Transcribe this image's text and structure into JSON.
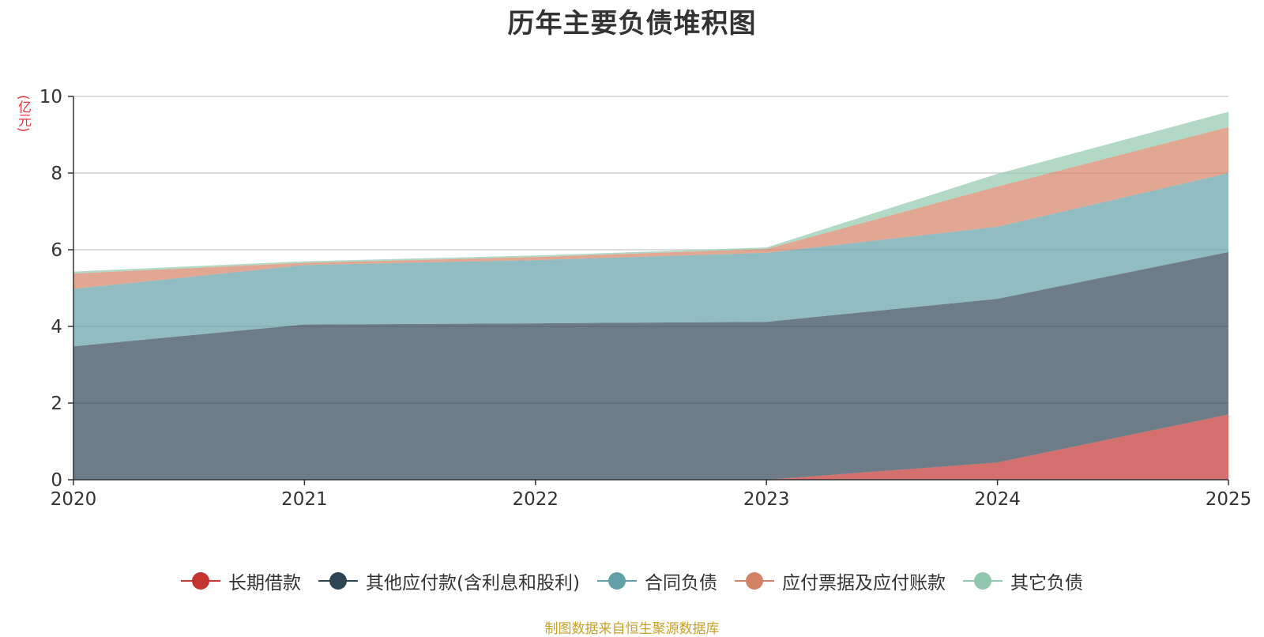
{
  "chart_data": {
    "type": "area",
    "stacked": true,
    "title": "历年主要负债堆积图",
    "ylabel": "(亿元)",
    "xlabel": "",
    "categories": [
      "2020",
      "2021",
      "2022",
      "2023",
      "2024",
      "2025"
    ],
    "ylim": [
      0,
      10
    ],
    "yticks": [
      0,
      2,
      4,
      6,
      8,
      10
    ],
    "grid": true,
    "legend_position": "bottom",
    "series": [
      {
        "name": "长期借款",
        "color": "#c23531",
        "values": [
          0,
          0,
          0,
          0,
          0.45,
          1.7
        ]
      },
      {
        "name": "其他应付款(含利息和股利)",
        "color": "#2f4554",
        "values": [
          3.48,
          4.05,
          4.08,
          4.12,
          4.27,
          4.24
        ]
      },
      {
        "name": "合同负债",
        "color": "#61a0a8",
        "values": [
          1.5,
          1.55,
          1.65,
          1.8,
          1.88,
          2.06
        ]
      },
      {
        "name": "应付票据及应付账款",
        "color": "#d48265",
        "values": [
          0.4,
          0.06,
          0.08,
          0.1,
          1.05,
          1.2
        ]
      },
      {
        "name": "其它负债",
        "color": "#91c7ae",
        "values": [
          0.05,
          0.04,
          0.04,
          0.04,
          0.33,
          0.4
        ]
      }
    ]
  },
  "footer": {
    "source": "制图数据来自恒生聚源数据库"
  }
}
